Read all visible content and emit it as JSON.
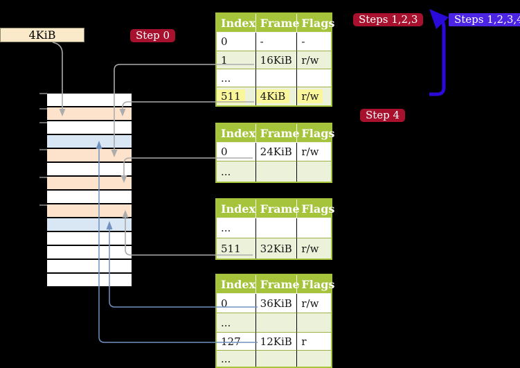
{
  "labels": {
    "frame_size": "4KiB",
    "step0": "Step 0",
    "steps_123": "Steps 1,2,3",
    "steps_1234": "Steps 1,2,3,4",
    "step4": "Step 4"
  },
  "colors": {
    "table_green": "#A5C43C",
    "row_shade": "#ECF1DA",
    "highlight_yellow": "#FAF69B",
    "chip_crimson": "#A8112E",
    "chip_violet": "#4B24E4",
    "arrow_blue": "#2A0AD8",
    "connector_gray": "#ACACAC",
    "connector_steelblue": "#7191C1",
    "frame_peach": "#FDE3CC",
    "frame_blue": "#D9E6F4",
    "frame_white": "#FFFFFF",
    "label_cream": "#FBEACA"
  },
  "tables": [
    {
      "name": "table-1",
      "headers": [
        "Index",
        "Frame",
        "Flags"
      ],
      "rows": [
        {
          "cells": [
            "0",
            "-",
            "-"
          ],
          "shaded": false,
          "highlight": false
        },
        {
          "cells": [
            "1",
            "16KiB",
            "r/w"
          ],
          "shaded": true,
          "highlight": false
        },
        {
          "cells": [
            "...",
            "",
            ""
          ],
          "shaded": false,
          "highlight": false
        },
        {
          "cells": [
            "511",
            "4KiB",
            "r/w"
          ],
          "shaded": true,
          "highlight": true
        }
      ]
    },
    {
      "name": "table-2",
      "headers": [
        "Index",
        "Frame",
        "Flags"
      ],
      "rows": [
        {
          "cells": [
            "0",
            "24KiB",
            "r/w"
          ],
          "shaded": false,
          "highlight": false
        },
        {
          "cells": [
            "...",
            "",
            ""
          ],
          "shaded": true,
          "highlight": false
        }
      ]
    },
    {
      "name": "table-3",
      "headers": [
        "Index",
        "Frame",
        "Flags"
      ],
      "rows": [
        {
          "cells": [
            "...",
            "",
            ""
          ],
          "shaded": false,
          "highlight": false
        },
        {
          "cells": [
            "511",
            "32KiB",
            "r/w"
          ],
          "shaded": true,
          "highlight": false
        }
      ]
    },
    {
      "name": "table-4",
      "headers": [
        "Index",
        "Frame",
        "Flags"
      ],
      "rows": [
        {
          "cells": [
            "0",
            "36KiB",
            "r/w"
          ],
          "shaded": false,
          "highlight": false
        },
        {
          "cells": [
            "...",
            "",
            ""
          ],
          "shaded": true,
          "highlight": false
        },
        {
          "cells": [
            "127",
            "12KiB",
            "r"
          ],
          "shaded": false,
          "highlight": false
        },
        {
          "cells": [
            "...",
            "",
            ""
          ],
          "shaded": true,
          "highlight": false
        }
      ]
    }
  ],
  "memory_strip": {
    "rows": [
      "white",
      "peach",
      "white",
      "blue",
      "peach",
      "white",
      "peach",
      "white",
      "peach",
      "blue",
      "white",
      "white",
      "white",
      "white"
    ]
  }
}
